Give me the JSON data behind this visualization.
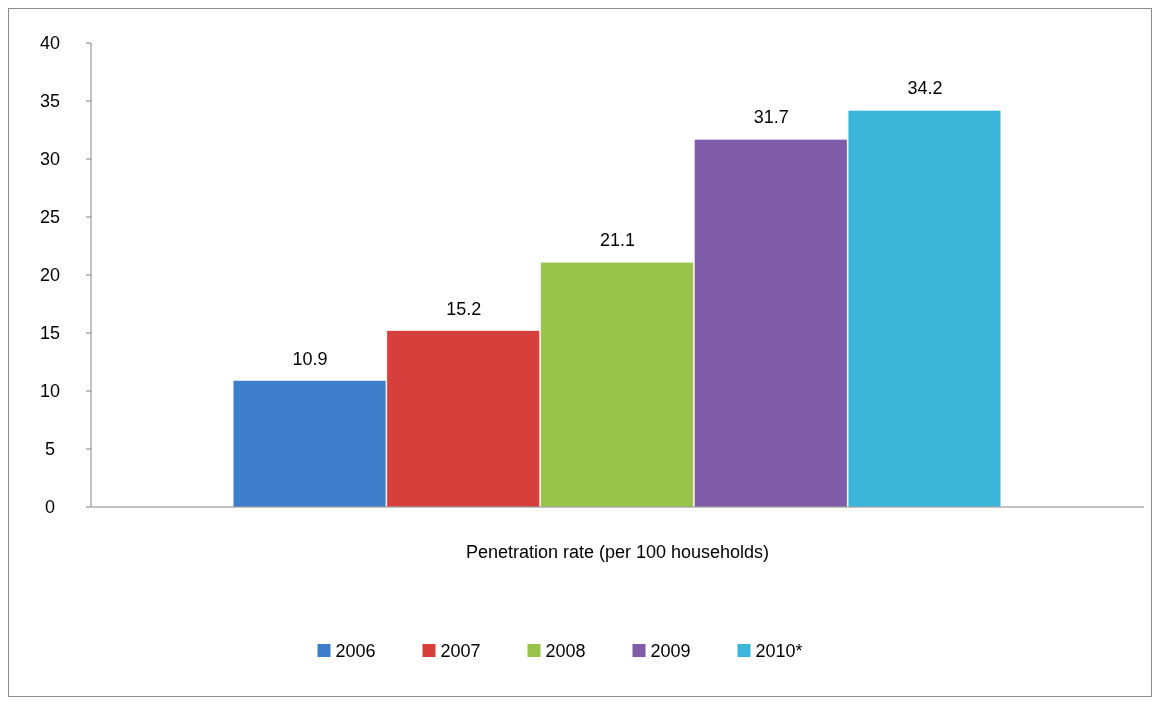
{
  "chart_data": {
    "type": "bar",
    "categories": [
      "Penetration rate (per 100 households)"
    ],
    "series": [
      {
        "name": "2006",
        "color": "#3d7cc9",
        "values": [
          10.9
        ]
      },
      {
        "name": "2007",
        "color": "#d63f3c",
        "values": [
          15.2
        ]
      },
      {
        "name": "2008",
        "color": "#98c44c",
        "values": [
          21.1
        ]
      },
      {
        "name": "2009",
        "color": "#7e5ca8",
        "values": [
          31.7
        ]
      },
      {
        "name": "2010*",
        "color": "#3cb6d8",
        "values": [
          34.2
        ]
      }
    ],
    "ylim": [
      0,
      40
    ],
    "yticks": [
      0,
      5,
      10,
      15,
      20,
      25,
      30,
      35,
      40
    ],
    "grid": false,
    "legend": "bottom",
    "data_labels": true
  }
}
